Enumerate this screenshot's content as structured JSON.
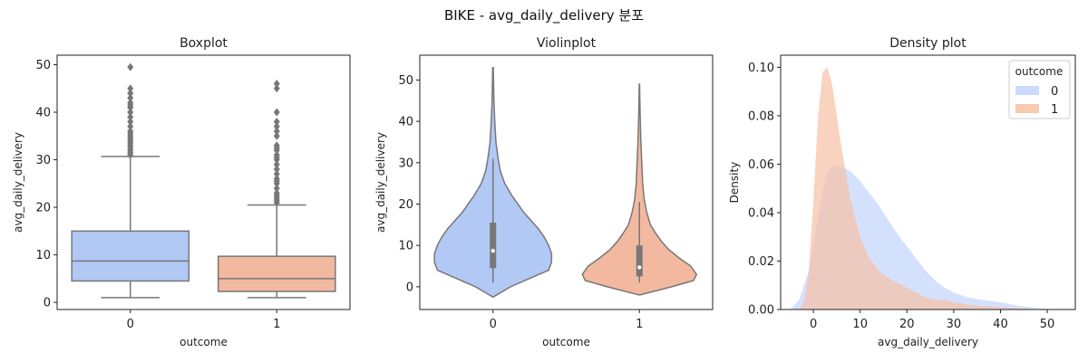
{
  "suptitle": "BIKE - avg_daily_delivery 분포",
  "colors": {
    "class0": "#b2c8f5",
    "class1": "#f2b9a0",
    "line": "#777777",
    "kde0": "#c2d4fb",
    "kde1": "#f7c1a5"
  },
  "chart_data": [
    {
      "type": "boxplot",
      "title": "Boxplot",
      "xlabel": "outcome",
      "ylabel": "avg_daily_delivery",
      "categories": [
        "0",
        "1"
      ],
      "ylim": [
        -1.5,
        52
      ],
      "yticks": [
        0,
        10,
        20,
        30,
        40,
        50
      ],
      "boxes": [
        {
          "category": "0",
          "whisker_low": 1,
          "q1": 4.5,
          "median": 8.7,
          "q3": 15,
          "whisker_high": 30.7,
          "fliers": [
            31,
            31.5,
            32,
            32.5,
            33,
            33.5,
            34,
            34.5,
            35,
            35.5,
            36,
            37,
            38,
            39,
            40,
            41,
            41.5,
            42,
            43,
            44,
            45,
            49.5
          ]
        },
        {
          "category": "1",
          "whisker_low": 1,
          "q1": 2.3,
          "median": 5,
          "q3": 9.7,
          "whisker_high": 20.5,
          "fliers": [
            21,
            21.5,
            22,
            22.5,
            23,
            24,
            25,
            25.5,
            26,
            27,
            28,
            29,
            30,
            30.5,
            31,
            32,
            32.5,
            33,
            35,
            36,
            37,
            38,
            40,
            45,
            46
          ]
        }
      ]
    },
    {
      "type": "violin",
      "title": "Violinplot",
      "xlabel": "outcome",
      "ylabel": "avg_daily_delivery",
      "categories": [
        "0",
        "1"
      ],
      "ylim": [
        -5.5,
        56
      ],
      "yticks": [
        0,
        10,
        20,
        30,
        40,
        50
      ],
      "violins": [
        {
          "category": "0",
          "min": 1,
          "q1": 4.5,
          "median": 8.7,
          "q3": 15.5,
          "max": 31,
          "range": [
            -2.5,
            53
          ],
          "profile": [
            [
              -2.5,
              0
            ],
            [
              0,
              0.12
            ],
            [
              2,
              0.25
            ],
            [
              4,
              0.38
            ],
            [
              6,
              0.4
            ],
            [
              8,
              0.4
            ],
            [
              10,
              0.38
            ],
            [
              12,
              0.35
            ],
            [
              14,
              0.31
            ],
            [
              16,
              0.26
            ],
            [
              18,
              0.21
            ],
            [
              20,
              0.17
            ],
            [
              22,
              0.13
            ],
            [
              25,
              0.08
            ],
            [
              28,
              0.05
            ],
            [
              31,
              0.035
            ],
            [
              35,
              0.02
            ],
            [
              40,
              0.012
            ],
            [
              45,
              0.006
            ],
            [
              53,
              0.002
            ]
          ]
        },
        {
          "category": "1",
          "min": 1,
          "q1": 2.5,
          "median": 4.7,
          "q3": 10,
          "max": 20.5,
          "range": [
            -2,
            49
          ],
          "profile": [
            [
              -2,
              0
            ],
            [
              0,
              0.22
            ],
            [
              1.5,
              0.37
            ],
            [
              3,
              0.39
            ],
            [
              5,
              0.35
            ],
            [
              7,
              0.27
            ],
            [
              9,
              0.2
            ],
            [
              11,
              0.15
            ],
            [
              13,
              0.11
            ],
            [
              15,
              0.075
            ],
            [
              18,
              0.05
            ],
            [
              21,
              0.033
            ],
            [
              25,
              0.022
            ],
            [
              30,
              0.016
            ],
            [
              35,
              0.01
            ],
            [
              40,
              0.006
            ],
            [
              45,
              0.003
            ],
            [
              49,
              0.001
            ]
          ]
        }
      ]
    },
    {
      "type": "area",
      "title": "Density plot",
      "xlabel": "avg_daily_delivery",
      "ylabel": "Density",
      "xlim": [
        -7,
        56
      ],
      "ylim": [
        0,
        0.105
      ],
      "xticks": [
        0,
        10,
        20,
        30,
        40,
        50
      ],
      "yticks": [
        0.0,
        0.02,
        0.04,
        0.06,
        0.08,
        0.1
      ],
      "ytick_labels": [
        "0.00",
        "0.02",
        "0.04",
        "0.06",
        "0.08",
        "0.10"
      ],
      "legend": {
        "title": "outcome",
        "placement": "top-right",
        "entries": [
          "0",
          "1"
        ]
      },
      "series": [
        {
          "name": "0",
          "x": [
            -5,
            -3,
            -1,
            1,
            2,
            3,
            4,
            5,
            6,
            7,
            8,
            10,
            12,
            14,
            16,
            18,
            20,
            22,
            24,
            26,
            28,
            30,
            33,
            36,
            40,
            44,
            48,
            52
          ],
          "values": [
            0,
            0.004,
            0.016,
            0.038,
            0.049,
            0.056,
            0.059,
            0.06,
            0.059,
            0.058,
            0.057,
            0.053,
            0.048,
            0.043,
            0.037,
            0.031,
            0.026,
            0.021,
            0.016,
            0.012,
            0.009,
            0.007,
            0.005,
            0.004,
            0.003,
            0.0015,
            0.0005,
            0
          ]
        },
        {
          "name": "1",
          "x": [
            -3,
            -2,
            -1,
            0,
            1,
            2,
            3,
            4,
            5,
            6,
            8,
            10,
            12,
            14,
            16,
            18,
            20,
            22,
            24,
            26,
            28,
            30,
            33,
            36,
            40,
            44,
            48
          ],
          "values": [
            0,
            0.003,
            0.015,
            0.045,
            0.08,
            0.098,
            0.1,
            0.093,
            0.08,
            0.067,
            0.045,
            0.03,
            0.021,
            0.016,
            0.013,
            0.011,
            0.009,
            0.007,
            0.005,
            0.004,
            0.004,
            0.003,
            0.002,
            0.0015,
            0.001,
            0.0005,
            0
          ]
        }
      ]
    }
  ]
}
